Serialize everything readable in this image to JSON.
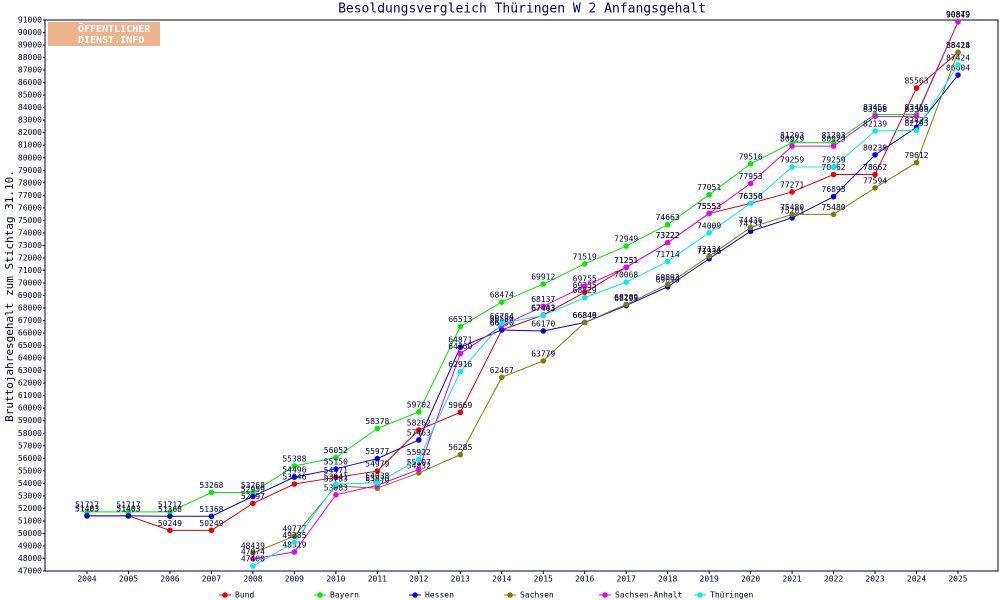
{
  "chart_data": {
    "type": "line",
    "title": "Besoldungsvergleich Thüringen W 2 Anfangsgehalt",
    "y_label": "Bruttojahresgehalt zum Stichtag 31.10.",
    "logo": [
      "ÖFFENTLICHER",
      "DIENST.INFO"
    ],
    "categories": [
      "2004",
      "2005",
      "2006",
      "2007",
      "2008",
      "2009",
      "2010",
      "2011",
      "2012",
      "2013",
      "2014",
      "2015",
      "2016",
      "2017",
      "2018",
      "2019",
      "2020",
      "2021",
      "2022",
      "2023",
      "2024",
      "2025"
    ],
    "ylim": [
      47000,
      91000
    ],
    "yticks": [
      47000,
      48000,
      49000,
      50000,
      51000,
      52000,
      53000,
      54000,
      55000,
      56000,
      57000,
      58000,
      59000,
      60000,
      61000,
      62000,
      63000,
      64000,
      65000,
      66000,
      67000,
      68000,
      69000,
      70000,
      71000,
      72000,
      73000,
      74000,
      75000,
      76000,
      77000,
      78000,
      79000,
      80000,
      81000,
      82000,
      83000,
      84000,
      85000,
      86000,
      87000,
      88000,
      89000,
      90000,
      91000
    ],
    "grid": false,
    "series": [
      {
        "name": "Bund",
        "color": "#ee0000",
        "values": [
          51403,
          51403,
          50249,
          50249,
          52397,
          53946,
          54471,
          54979,
          58262,
          59669,
          66250,
          67443,
          69255,
          71251,
          73222,
          75553,
          76356,
          77271,
          78662,
          78662,
          85563,
          88418
        ]
      },
      {
        "name": "Bayern",
        "color": "#00ee00",
        "values": [
          51717,
          51717,
          51717,
          53268,
          53268,
          55388,
          56052,
          58378,
          59702,
          66513,
          68474,
          69912,
          71519,
          72949,
          74663,
          77051,
          79516,
          81203,
          81203,
          83456,
          83456,
          90879
        ]
      },
      {
        "name": "Hessen",
        "color": "#0000ee",
        "values": [
          51403,
          51403,
          51368,
          51368,
          52959,
          54496,
          55150,
          55977,
          57463,
          64871,
          66250,
          66170,
          66846,
          68199,
          69690,
          71936,
          74131,
          75201,
          76893,
          80230,
          82433,
          86604
        ]
      },
      {
        "name": "Sachsen",
        "color": "#808000",
        "values": [
          null,
          null,
          null,
          null,
          48439,
          49777,
          53783,
          53619,
          54832,
          56285,
          62467,
          63779,
          66849,
          68289,
          69893,
          72134,
          74436,
          75480,
          75480,
          77594,
          79612,
          88424
        ]
      },
      {
        "name": "Sachsen-Anhalt",
        "color": "#ee00ee",
        "values": [
          null,
          null,
          null,
          null,
          47974,
          48519,
          53083,
          53838,
          55107,
          64360,
          66580,
          68137,
          69755,
          71251,
          73222,
          75553,
          77953,
          80929,
          80929,
          83308,
          83308,
          90849
        ]
      },
      {
        "name": "Thüringen",
        "color": "#00eeee",
        "values": [
          null,
          null,
          null,
          null,
          47400,
          49285,
          53941,
          54038,
          55922,
          62916,
          66784,
          67403,
          68829,
          70068,
          71714,
          74009,
          76358,
          79259,
          79259,
          82139,
          82193,
          87424
        ]
      }
    ]
  }
}
